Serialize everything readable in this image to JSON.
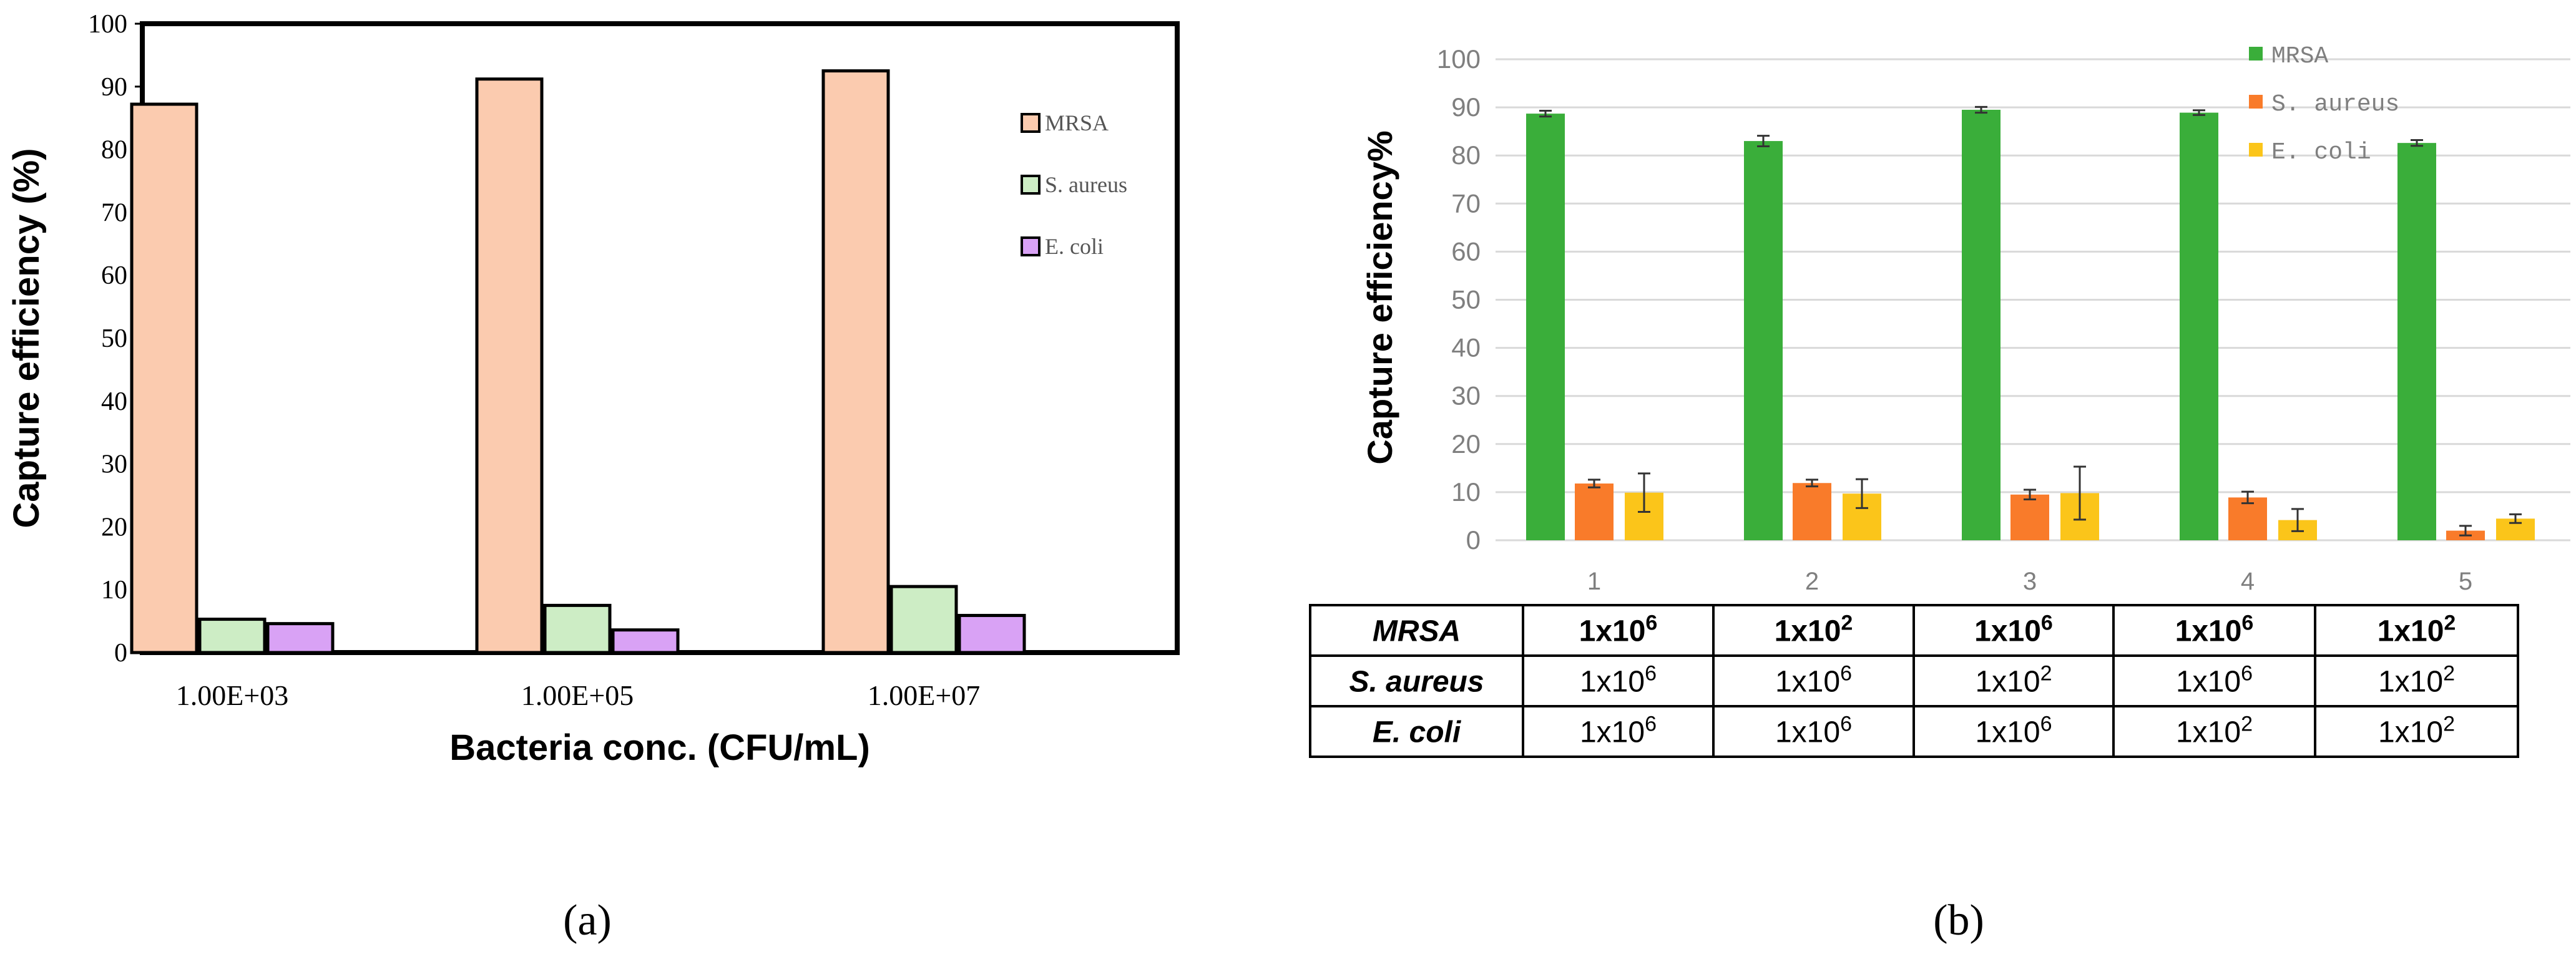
{
  "colors": {
    "mrsa_a": "#FBCBAF",
    "saureus_a": "#CDEDC5",
    "ecoli_a": "#D9A2F5",
    "mrsa_b": "#3AAE3A",
    "saureus_b": "#F97B2A",
    "ecoli_b": "#FBC51A",
    "grid_b": "#D9D9D9",
    "axis_text_b": "#7F7F7F"
  },
  "chart_data": [
    {
      "id": "a",
      "type": "bar",
      "panel_label": "(a)",
      "title": "",
      "xlabel": "Bacteria conc. (CFU/mL)",
      "ylabel": "Capture efficiency (%)",
      "ylim": [
        0,
        100
      ],
      "yticks": [
        0,
        10,
        20,
        30,
        40,
        50,
        60,
        70,
        80,
        90,
        100
      ],
      "grid": false,
      "legend_position": "right",
      "categories": [
        "1.00E+03",
        "1.00E+05",
        "1.00E+07"
      ],
      "series": [
        {
          "name": "MRSA",
          "color_key": "mrsa_a",
          "values": [
            87.2,
            91.2,
            92.5
          ]
        },
        {
          "name": "S. aureus",
          "color_key": "saureus_a",
          "values": [
            5.3,
            7.5,
            10.5
          ]
        },
        {
          "name": "E. coli",
          "color_key": "ecoli_a",
          "values": [
            4.6,
            3.6,
            5.9
          ]
        }
      ]
    },
    {
      "id": "b",
      "type": "bar",
      "panel_label": "(b)",
      "title": "",
      "xlabel": "",
      "ylabel": "Capture efficiency%",
      "ylim": [
        0,
        100
      ],
      "yticks": [
        0,
        10,
        20,
        30,
        40,
        50,
        60,
        70,
        80,
        90,
        100
      ],
      "grid": true,
      "legend_position": "top-right",
      "categories": [
        "1",
        "2",
        "3",
        "4",
        "5"
      ],
      "series": [
        {
          "name": "MRSA",
          "color_key": "mrsa_b",
          "values": [
            88.7,
            83.0,
            89.5,
            88.9,
            82.6
          ],
          "errors": [
            0.6,
            1.1,
            0.6,
            0.5,
            0.6
          ]
        },
        {
          "name": "S. aureus",
          "color_key": "saureus_b",
          "values": [
            11.8,
            11.9,
            9.5,
            8.9,
            2.0
          ],
          "errors": [
            0.8,
            0.7,
            1.0,
            1.2,
            1.0
          ]
        },
        {
          "name": "E. coli",
          "color_key": "ecoli_b",
          "values": [
            9.9,
            9.7,
            9.8,
            4.2,
            4.5
          ],
          "errors": [
            4.0,
            3.0,
            5.5,
            2.3,
            0.9
          ]
        }
      ],
      "table": {
        "rows": [
          {
            "label": "MRSA",
            "bold": true,
            "cells": [
              [
                "1x10",
                "6"
              ],
              [
                "1x10",
                "2"
              ],
              [
                "1x10",
                "6"
              ],
              [
                "1x10",
                "6"
              ],
              [
                "1x10",
                "2"
              ]
            ]
          },
          {
            "label": "S. aureus",
            "bold": false,
            "cells": [
              [
                "1x10",
                "6"
              ],
              [
                "1x10",
                "6"
              ],
              [
                "1x10",
                "2"
              ],
              [
                "1x10",
                "6"
              ],
              [
                "1x10",
                "2"
              ]
            ]
          },
          {
            "label": "E. coli",
            "bold": false,
            "cells": [
              [
                "1x10",
                "6"
              ],
              [
                "1x10",
                "6"
              ],
              [
                "1x10",
                "6"
              ],
              [
                "1x10",
                "2"
              ],
              [
                "1x10",
                "2"
              ]
            ]
          }
        ]
      }
    }
  ]
}
